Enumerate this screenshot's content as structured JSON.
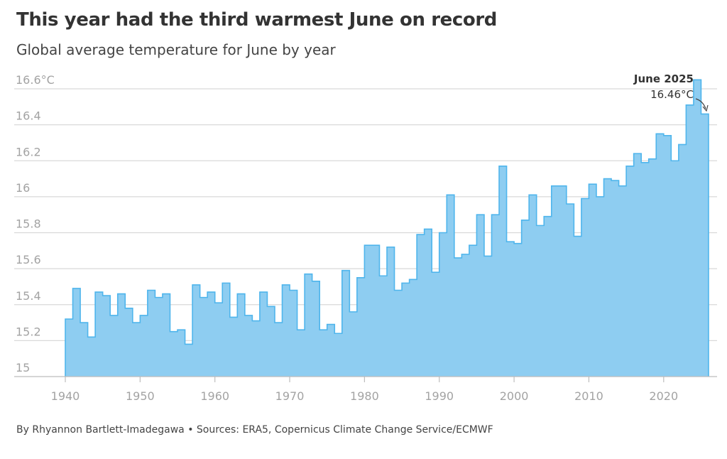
{
  "chart_data": {
    "type": "area",
    "title": "This year had the third warmest June on record",
    "subtitle": "Global average temperature for June by year",
    "xlabel": "",
    "ylabel": "",
    "unit": "°C",
    "ylim": [
      15,
      16.7
    ],
    "xlim": [
      1940,
      2025
    ],
    "y_ticks": [
      {
        "value": 15,
        "label": "15"
      },
      {
        "value": 15.2,
        "label": "15.2"
      },
      {
        "value": 15.4,
        "label": "15.4"
      },
      {
        "value": 15.6,
        "label": "15.6"
      },
      {
        "value": 15.8,
        "label": "15.8"
      },
      {
        "value": 16,
        "label": "16"
      },
      {
        "value": 16.2,
        "label": "16.2"
      },
      {
        "value": 16.4,
        "label": "16.4"
      },
      {
        "value": 16.6,
        "label": "16.6°C"
      }
    ],
    "x_ticks": [
      {
        "value": 1940,
        "label": "1940"
      },
      {
        "value": 1950,
        "label": "1950"
      },
      {
        "value": 1960,
        "label": "1960"
      },
      {
        "value": 1970,
        "label": "1970"
      },
      {
        "value": 1980,
        "label": "1980"
      },
      {
        "value": 1990,
        "label": "1990"
      },
      {
        "value": 2000,
        "label": "2000"
      },
      {
        "value": 2010,
        "label": "2010"
      },
      {
        "value": 2020,
        "label": "2020"
      }
    ],
    "x": [
      1940,
      1941,
      1942,
      1943,
      1944,
      1945,
      1946,
      1947,
      1948,
      1949,
      1950,
      1951,
      1952,
      1953,
      1954,
      1955,
      1956,
      1957,
      1958,
      1959,
      1960,
      1961,
      1962,
      1963,
      1964,
      1965,
      1966,
      1967,
      1968,
      1969,
      1970,
      1971,
      1972,
      1973,
      1974,
      1975,
      1976,
      1977,
      1978,
      1979,
      1980,
      1981,
      1982,
      1983,
      1984,
      1985,
      1986,
      1987,
      1988,
      1989,
      1990,
      1991,
      1992,
      1993,
      1994,
      1995,
      1996,
      1997,
      1998,
      1999,
      2000,
      2001,
      2002,
      2003,
      2004,
      2005,
      2006,
      2007,
      2008,
      2009,
      2010,
      2011,
      2012,
      2013,
      2014,
      2015,
      2016,
      2017,
      2018,
      2019,
      2020,
      2021,
      2022,
      2023,
      2024,
      2025
    ],
    "values": [
      15.32,
      15.49,
      15.3,
      15.22,
      15.47,
      15.45,
      15.34,
      15.46,
      15.38,
      15.3,
      15.34,
      15.48,
      15.44,
      15.46,
      15.25,
      15.26,
      15.18,
      15.51,
      15.44,
      15.47,
      15.41,
      15.52,
      15.33,
      15.46,
      15.34,
      15.31,
      15.47,
      15.39,
      15.3,
      15.51,
      15.48,
      15.26,
      15.57,
      15.53,
      15.26,
      15.29,
      15.24,
      15.59,
      15.36,
      15.55,
      15.73,
      15.73,
      15.56,
      15.72,
      15.48,
      15.52,
      15.54,
      15.79,
      15.82,
      15.58,
      15.8,
      16.01,
      15.66,
      15.68,
      15.73,
      15.9,
      15.67,
      15.9,
      16.17,
      15.75,
      15.74,
      15.87,
      16.01,
      15.84,
      15.89,
      16.06,
      16.06,
      15.96,
      15.78,
      15.99,
      16.07,
      16.0,
      16.1,
      16.09,
      16.06,
      16.17,
      16.24,
      16.19,
      16.21,
      16.35,
      16.34,
      16.2,
      16.29,
      16.51,
      16.65,
      16.46
    ],
    "annotation": {
      "year": 2025,
      "title": "June 2025",
      "value_label": "16.46°C",
      "value": 16.46
    },
    "fill_color": "#8ecdf1",
    "stroke_color": "#4fb5ec",
    "grid": true
  },
  "credit": "By Rhyannon Bartlett-Imadegawa • Sources: ERA5, Copernicus Climate Change Service/ECMWF"
}
